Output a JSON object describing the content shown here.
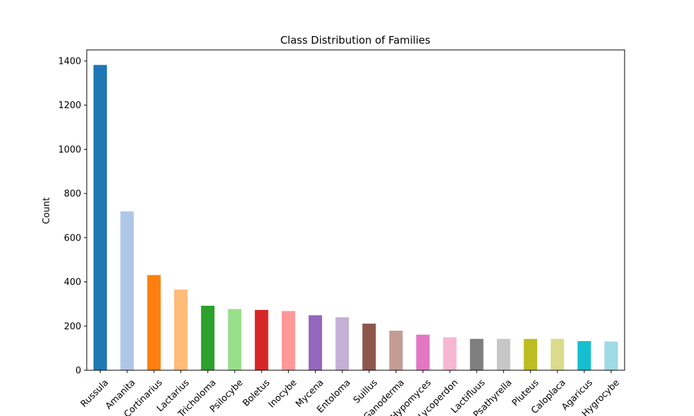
{
  "chart_data": {
    "type": "bar",
    "title": "Class Distribution of Families",
    "xlabel": "",
    "ylabel": "Count",
    "ylim": [
      0,
      1450
    ],
    "yticks": [
      0,
      200,
      400,
      600,
      800,
      1000,
      1200,
      1400
    ],
    "grid": false,
    "legend": "none",
    "categories": [
      "Russula",
      "Amanita",
      "Cortinarius",
      "Lactarius",
      "Tricholoma",
      "Psilocybe",
      "Boletus",
      "Inocybe",
      "Mycena",
      "Entoloma",
      "Suillus",
      "Ganoderma",
      "Hypomyces",
      "Lycoperdon",
      "Lactifluus",
      "Psathyrella",
      "Pluteus",
      "Caloplaca",
      "Agaricus",
      "Hygrocybe"
    ],
    "values": [
      1382,
      719,
      431,
      365,
      292,
      277,
      273,
      268,
      249,
      240,
      211,
      179,
      161,
      149,
      142,
      142,
      142,
      142,
      132,
      130
    ],
    "colors": [
      "#1f77b4",
      "#aec7e8",
      "#ff7f0e",
      "#ffbb78",
      "#2ca02c",
      "#98df8a",
      "#d62728",
      "#ff9896",
      "#9467bd",
      "#c5b0d5",
      "#8c564b",
      "#c49c94",
      "#e377c2",
      "#f7b6d2",
      "#7f7f7f",
      "#c7c7c7",
      "#bcbd22",
      "#dbdb8d",
      "#17becf",
      "#9edae5"
    ]
  }
}
